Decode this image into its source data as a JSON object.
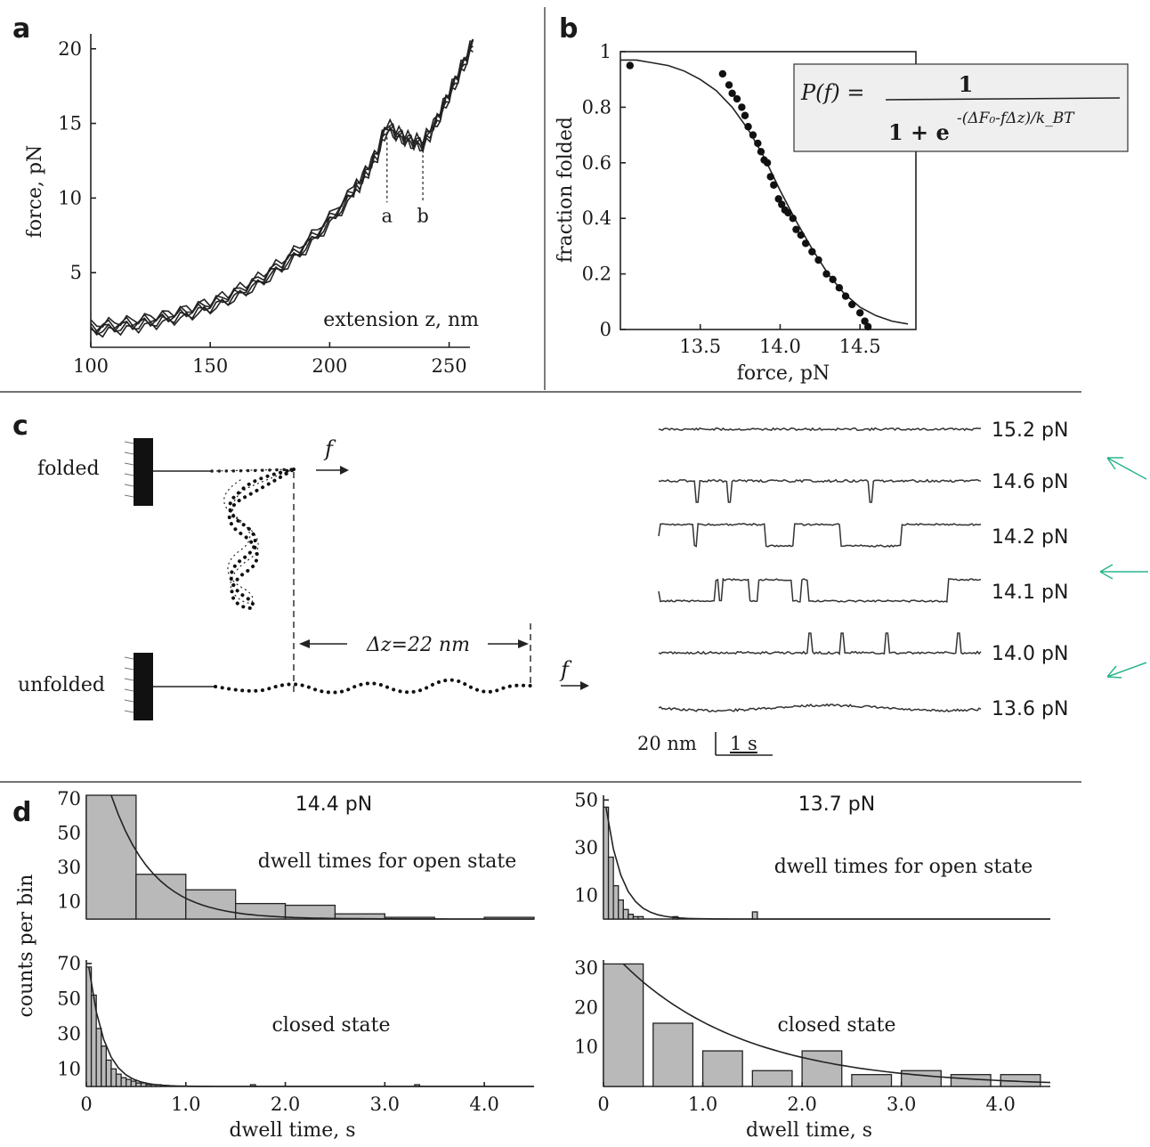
{
  "panel_labels": {
    "a": "a",
    "b": "b",
    "c": "c",
    "d": "d"
  },
  "colors": {
    "ink": "#222222",
    "bar_fill": "#b9b9b9",
    "arrow_accent": "#2bb58f"
  },
  "chart_data": [
    {
      "id": "a",
      "type": "line",
      "xlabel": "extension z, nm",
      "ylabel": "force, pN",
      "xlim": [
        100,
        260
      ],
      "ylim": [
        0,
        21
      ],
      "xticks": [
        100,
        150,
        200,
        250
      ],
      "yticks": [
        5,
        10,
        15,
        20
      ],
      "markers": [
        {
          "label": "a",
          "x": 224
        },
        {
          "label": "b",
          "x": 239
        }
      ],
      "series": [
        {
          "x": [
            100,
            110,
            120,
            130,
            140,
            150,
            160,
            170,
            180,
            190,
            200,
            210,
            215,
            220,
            224,
            229,
            234,
            239,
            245,
            250,
            255,
            260
          ],
          "y": [
            1.2,
            1.4,
            1.6,
            1.9,
            2.3,
            2.8,
            3.5,
            4.4,
            5.5,
            6.8,
            8.5,
            10.4,
            11.6,
            13.0,
            14.8,
            14.2,
            13.8,
            13.6,
            15.2,
            16.9,
            18.6,
            20.3
          ]
        }
      ]
    },
    {
      "id": "b",
      "type": "scatter",
      "xlabel": "force, pN",
      "ylabel": "fraction folded",
      "xlim": [
        13.0,
        14.85
      ],
      "ylim": [
        0,
        1
      ],
      "xticks": [
        13.5,
        14.0,
        14.5
      ],
      "yticks": [
        0,
        0.2,
        0.4,
        0.6,
        0.8,
        1
      ],
      "formula": {
        "lhs": "P(f) =",
        "num": "1",
        "den": "1 + e",
        "exp": "-(ΔF₀-fΔz)/k_BT"
      },
      "points": {
        "x": [
          13.06,
          13.64,
          13.68,
          13.7,
          13.73,
          13.76,
          13.78,
          13.8,
          13.83,
          13.86,
          13.88,
          13.9,
          13.92,
          13.94,
          13.96,
          13.99,
          14.01,
          14.03,
          14.05,
          14.08,
          14.1,
          14.13,
          14.16,
          14.2,
          14.24,
          14.29,
          14.33,
          14.37,
          14.41,
          14.45,
          14.5,
          14.53,
          14.55
        ],
        "y": [
          0.95,
          0.92,
          0.88,
          0.85,
          0.83,
          0.8,
          0.77,
          0.73,
          0.7,
          0.67,
          0.64,
          0.61,
          0.6,
          0.55,
          0.52,
          0.47,
          0.45,
          0.43,
          0.42,
          0.4,
          0.36,
          0.34,
          0.31,
          0.28,
          0.25,
          0.2,
          0.18,
          0.15,
          0.12,
          0.09,
          0.06,
          0.03,
          0.01
        ]
      },
      "fit": {
        "x": [
          13.0,
          13.1,
          13.2,
          13.3,
          13.4,
          13.5,
          13.6,
          13.7,
          13.8,
          13.9,
          14.0,
          14.1,
          14.2,
          14.3,
          14.4,
          14.5,
          14.6,
          14.7,
          14.8
        ],
        "y": [
          0.97,
          0.97,
          0.96,
          0.95,
          0.93,
          0.9,
          0.86,
          0.8,
          0.72,
          0.62,
          0.5,
          0.39,
          0.29,
          0.2,
          0.13,
          0.08,
          0.05,
          0.03,
          0.02
        ]
      }
    },
    {
      "id": "c",
      "type": "line",
      "schematic": {
        "folded_label": "folded",
        "unfolded_label": "unfolded",
        "force_symbol": "f",
        "delta_label": "Δz=22 nm"
      },
      "traces": [
        {
          "force": "15.2 pN",
          "pattern": "flat"
        },
        {
          "force": "14.6 pN",
          "pattern": "dips"
        },
        {
          "force": "14.2 pN",
          "pattern": "toggle-mostly-up"
        },
        {
          "force": "14.1 pN",
          "pattern": "toggle-mostly-down"
        },
        {
          "force": "14.0 pN",
          "pattern": "spikes"
        },
        {
          "force": "13.6 pN",
          "pattern": "flat"
        }
      ],
      "scale_bar": {
        "distance": "20 nm",
        "time": "1 s"
      }
    },
    {
      "id": "d1",
      "type": "bar",
      "title": "14.4 pN",
      "annotation": "dwell times for open state",
      "xlim": [
        0,
        4.5
      ],
      "ylim": [
        0,
        72
      ],
      "yticks": [
        10,
        30,
        50,
        70
      ],
      "bin_width": 0.5,
      "bin_starts": [
        0,
        0.5,
        1.0,
        1.5,
        2.0,
        2.5,
        3.0,
        3.5,
        4.0
      ],
      "values": [
        72,
        26,
        17,
        9,
        8,
        3,
        1,
        0,
        1
      ]
    },
    {
      "id": "d2",
      "type": "bar",
      "title": "13.7 pN",
      "annotation": "dwell times for open state",
      "xlim": [
        0,
        4.5
      ],
      "ylim": [
        0,
        52
      ],
      "yticks": [
        10,
        30,
        50
      ],
      "bin_width": 0.05,
      "bin_starts": [
        0,
        0.05,
        0.1,
        0.15,
        0.2,
        0.25,
        0.3,
        0.35,
        0.7,
        1.5
      ],
      "values": [
        47,
        26,
        14,
        8,
        4,
        2,
        1,
        1,
        1,
        3
      ]
    },
    {
      "id": "d3",
      "type": "bar",
      "annotation": "closed state",
      "xlim": [
        0,
        4.5
      ],
      "ylim": [
        0,
        72
      ],
      "yticks": [
        10,
        30,
        50,
        70
      ],
      "xticks": [
        0,
        1.0,
        2.0,
        3.0,
        4.0
      ],
      "xlabel": "dwell time, s",
      "bin_width": 0.05,
      "bin_starts": [
        0,
        0.05,
        0.1,
        0.15,
        0.2,
        0.25,
        0.3,
        0.35,
        0.4,
        0.45,
        0.5,
        0.55,
        0.6,
        0.65,
        0.7,
        1.65,
        3.3
      ],
      "values": [
        68,
        52,
        33,
        23,
        15,
        10,
        7,
        5,
        4,
        3,
        2,
        2,
        1,
        1,
        1,
        1,
        1
      ]
    },
    {
      "id": "d4",
      "type": "bar",
      "annotation": "closed state",
      "xlim": [
        0,
        4.5
      ],
      "ylim": [
        0,
        32
      ],
      "yticks": [
        10,
        20,
        30
      ],
      "xticks": [
        0,
        1.0,
        2.0,
        3.0,
        4.0
      ],
      "xlabel": "dwell time, s",
      "bin_width": 0.4,
      "bin_starts": [
        0,
        0.5,
        1.0,
        1.5,
        2.0,
        2.5,
        3.0,
        3.5,
        4.0
      ],
      "values": [
        31,
        16,
        9,
        4,
        9,
        3,
        4,
        3,
        3
      ]
    }
  ],
  "shared_ylabel_d": "counts per bin"
}
